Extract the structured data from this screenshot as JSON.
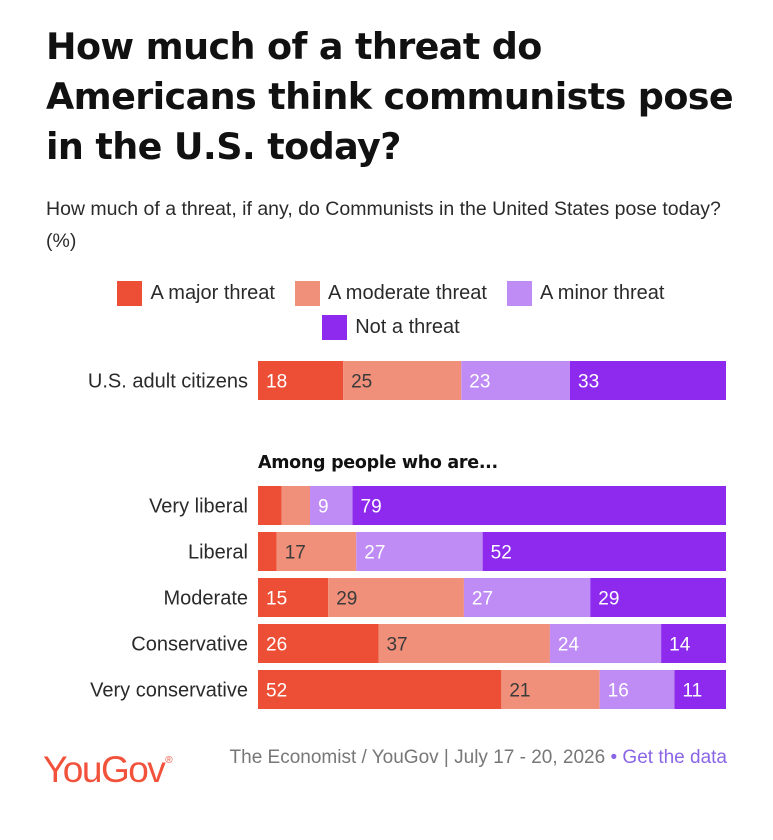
{
  "title": "How much of a threat do Americans think communists pose in the U.S. today?",
  "subtitle": "How much of a threat, if any, do Communists in the United States pose today? (%)",
  "legend": [
    {
      "label": "A major threat",
      "color": "#ec4f36"
    },
    {
      "label": "A moderate threat",
      "color": "#f0907b"
    },
    {
      "label": "A minor threat",
      "color": "#be8cf4"
    },
    {
      "label": "Not a threat",
      "color": "#8d2aee"
    }
  ],
  "section_heading": "Among people who are...",
  "source": {
    "text": "The Economist / YouGov | July 17 - 20, 2026",
    "separator": "•",
    "link_label": "Get the data"
  },
  "logo": {
    "text": "YouGov",
    "mark": "®"
  },
  "chart_data": {
    "type": "bar",
    "orientation": "horizontal",
    "stacked": true,
    "unit": "%",
    "categories": [
      "U.S. adult citizens",
      "Very liberal",
      "Liberal",
      "Moderate",
      "Conservative",
      "Very conservative"
    ],
    "series": [
      {
        "name": "A major threat",
        "color": "#ec4f36",
        "values": [
          18,
          5,
          4,
          15,
          26,
          52
        ]
      },
      {
        "name": "A moderate threat",
        "color": "#f0907b",
        "values": [
          25,
          6,
          17,
          29,
          37,
          21
        ]
      },
      {
        "name": "A minor threat",
        "color": "#be8cf4",
        "values": [
          23,
          9,
          27,
          27,
          24,
          16
        ]
      },
      {
        "name": "Not a threat",
        "color": "#8d2aee",
        "values": [
          33,
          79,
          52,
          29,
          14,
          11
        ]
      }
    ],
    "labeled_threshold": 8,
    "label_colors": {
      "A major threat": "#ffffff",
      "A moderate threat": "#3a3a3a",
      "A minor threat": "#ffffff",
      "Not a threat": "#ffffff"
    }
  }
}
